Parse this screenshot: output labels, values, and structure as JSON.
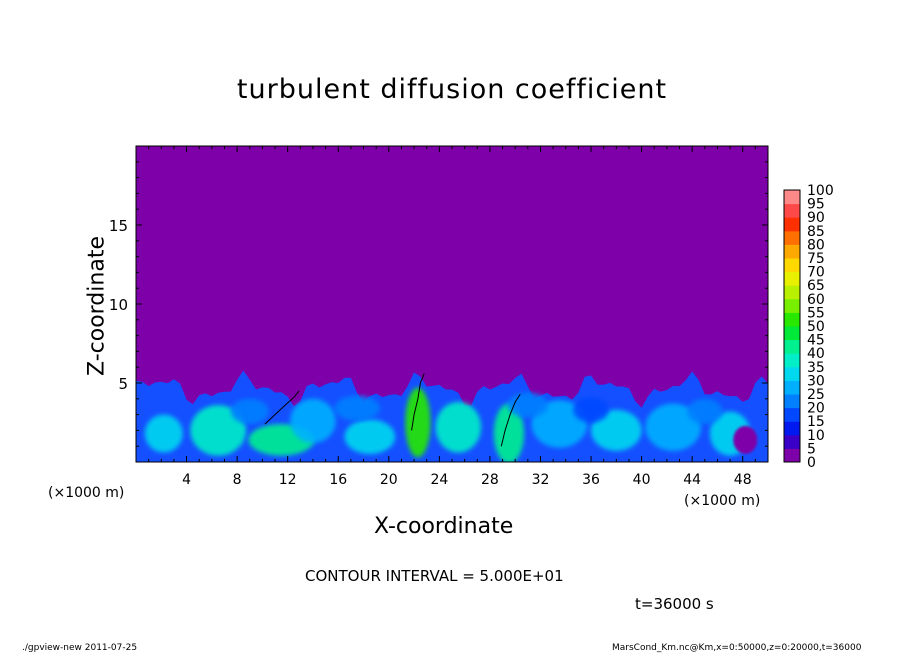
{
  "chart_data": {
    "type": "heatmap",
    "title": "turbulent diffusion coefficient",
    "xlabel": "X-coordinate",
    "ylabel": "Z-coordinate",
    "x_unit_label": "(×1000 m)",
    "xlim": [
      0,
      50
    ],
    "ylim": [
      0,
      20
    ],
    "x_ticks": [
      4,
      8,
      12,
      16,
      20,
      24,
      28,
      32,
      36,
      40,
      44,
      48
    ],
    "y_ticks": [
      5,
      10,
      15
    ],
    "colorbar": {
      "levels": [
        0,
        5,
        10,
        15,
        20,
        25,
        30,
        35,
        40,
        45,
        50,
        55,
        60,
        65,
        70,
        75,
        80,
        85,
        90,
        95,
        100
      ],
      "colors": [
        "#7e00a9",
        "#3a00c8",
        "#0019ef",
        "#0048ff",
        "#0080ff",
        "#00b0ff",
        "#00d8f0",
        "#00eec8",
        "#00f090",
        "#00e838",
        "#28e800",
        "#78ee00",
        "#b8f000",
        "#e8f000",
        "#ffd800",
        "#ffa800",
        "#ff7000",
        "#ff3000",
        "#ff4848",
        "#ff8888"
      ]
    },
    "background_color": "#7e00a9",
    "turbulent_layer_top_km": 5.5,
    "contour_level": 50
  },
  "annotations": {
    "contour_interval": "CONTOUR INTERVAL = 5.000E+01",
    "time": "t=36000 s",
    "footer_left": "./gpview-new   2011-07-25",
    "footer_right": "MarsCond_Km.nc@Km,x=0:50000,z=0:20000,t=36000"
  }
}
